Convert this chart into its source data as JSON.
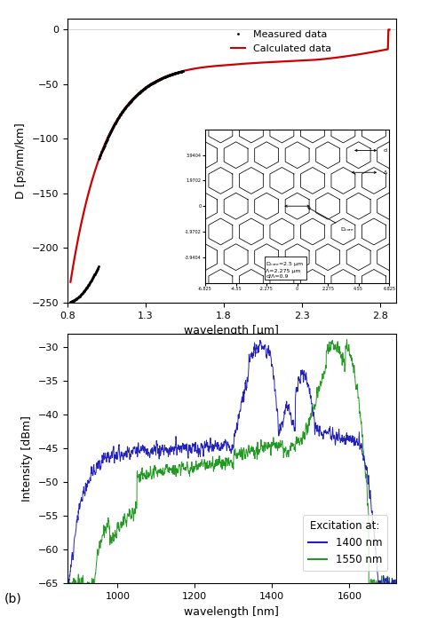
{
  "top_plot": {
    "xlabel": "wavelength [μm]",
    "ylabel": "D [ps/nm/km]",
    "xlim": [
      0.8,
      2.9
    ],
    "ylim": [
      -250,
      10
    ],
    "yticks": [
      0,
      -50,
      -100,
      -150,
      -200,
      -250
    ],
    "xticks": [
      0.8,
      1.3,
      1.8,
      2.3,
      2.8
    ],
    "measured_color": "#111111",
    "calculated_color": "#cc0000",
    "legend_measured": "Measured data",
    "legend_calculated": "Calculated data"
  },
  "bottom_plot": {
    "xlabel": "wavelength [nm]",
    "ylabel": "Intensity [dBm]",
    "xlim": [
      870,
      1720
    ],
    "ylim": [
      -65,
      -28
    ],
    "yticks": [
      -30,
      -35,
      -40,
      -45,
      -50,
      -55,
      -60,
      -65
    ],
    "xticks": [
      1000,
      1200,
      1400,
      1600
    ],
    "blue_color": "#2222bb",
    "green_color": "#229922",
    "legend_title": "Excitation at:",
    "legend_blue": "1400 nm",
    "legend_green": "1550 nm"
  },
  "label_b": "(b)"
}
